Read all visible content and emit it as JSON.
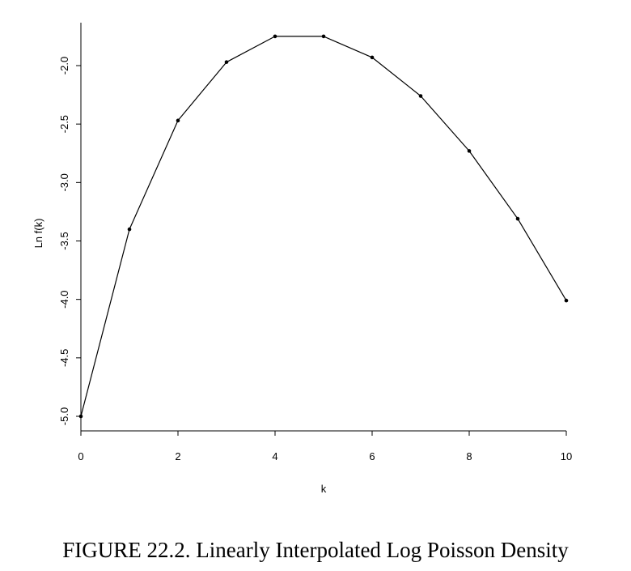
{
  "figure": {
    "caption": "FIGURE 22.2. Linearly Interpolated Log Poisson Density"
  },
  "chart_data": {
    "type": "line",
    "title": "",
    "xlabel": "k",
    "ylabel": "Ln f(k)",
    "x": [
      0,
      1,
      2,
      3,
      4,
      5,
      6,
      7,
      8,
      9,
      10
    ],
    "series": [
      {
        "values": [
          -5.0,
          -3.4,
          -2.47,
          -1.97,
          -1.75,
          -1.75,
          -1.93,
          -2.26,
          -2.73,
          -3.31,
          -4.01
        ]
      }
    ],
    "x_ticks": [
      "0",
      "2",
      "4",
      "6",
      "8",
      "10"
    ],
    "y_ticks": [
      "-2.0",
      "-2.5",
      "-3.0",
      "-3.5",
      "-4.0",
      "-4.5",
      "-5.0"
    ],
    "xlim": [
      0,
      10
    ],
    "ylim": [
      -5.0,
      -2.0
    ],
    "grid": false,
    "markers": true,
    "line_color": "#000000"
  }
}
